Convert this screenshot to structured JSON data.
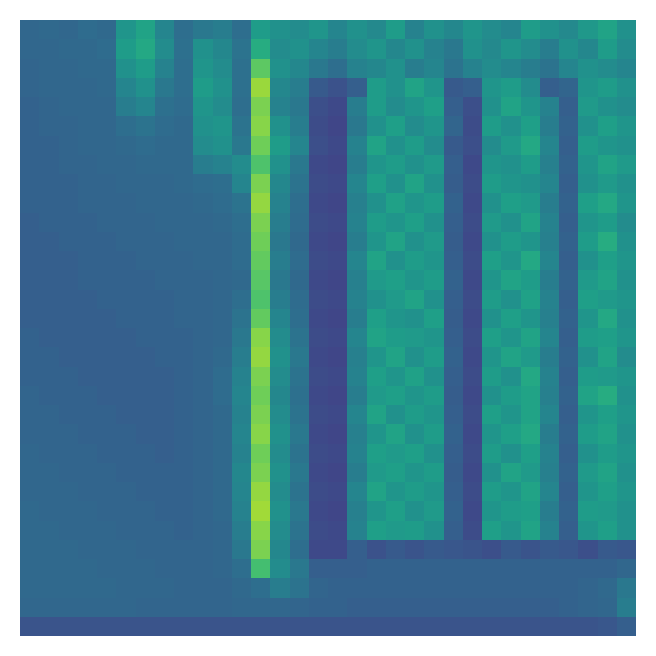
{
  "chart_data": {
    "type": "heatmap",
    "color": "Viridis",
    "tick_labels": false,
    "grid": false,
    "xlim": [
      -0.5,
      31.5
    ],
    "ylim": [
      31.5,
      -0.5
    ],
    "zlim": [
      0,
      1
    ],
    "cells": [
      [
        0.33,
        0.34,
        0.33,
        0.35,
        0.34,
        0.52,
        0.58,
        0.45,
        0.36,
        0.4,
        0.42,
        0.36,
        0.55,
        0.5,
        0.48,
        0.52,
        0.45,
        0.5,
        0.47,
        0.55,
        0.44,
        0.5,
        0.46,
        0.52,
        0.48,
        0.45,
        0.55,
        0.5,
        0.47,
        0.53,
        0.58,
        0.5
      ],
      [
        0.33,
        0.33,
        0.34,
        0.34,
        0.35,
        0.55,
        0.6,
        0.48,
        0.37,
        0.5,
        0.46,
        0.38,
        0.62,
        0.48,
        0.5,
        0.45,
        0.42,
        0.48,
        0.52,
        0.46,
        0.5,
        0.44,
        0.4,
        0.5,
        0.47,
        0.52,
        0.48,
        0.42,
        0.5,
        0.46,
        0.55,
        0.48
      ],
      [
        0.32,
        0.33,
        0.33,
        0.34,
        0.34,
        0.5,
        0.55,
        0.44,
        0.36,
        0.52,
        0.48,
        0.37,
        0.75,
        0.5,
        0.46,
        0.4,
        0.36,
        0.44,
        0.46,
        0.5,
        0.42,
        0.45,
        0.38,
        0.44,
        0.48,
        0.45,
        0.42,
        0.38,
        0.45,
        0.5,
        0.48,
        0.45
      ],
      [
        0.32,
        0.33,
        0.33,
        0.33,
        0.34,
        0.45,
        0.5,
        0.4,
        0.36,
        0.55,
        0.5,
        0.37,
        0.85,
        0.46,
        0.42,
        0.28,
        0.25,
        0.3,
        0.55,
        0.5,
        0.58,
        0.52,
        0.28,
        0.3,
        0.52,
        0.55,
        0.48,
        0.3,
        0.32,
        0.52,
        0.55,
        0.5
      ],
      [
        0.31,
        0.32,
        0.33,
        0.33,
        0.33,
        0.42,
        0.45,
        0.37,
        0.35,
        0.52,
        0.48,
        0.36,
        0.8,
        0.44,
        0.4,
        0.24,
        0.22,
        0.42,
        0.55,
        0.48,
        0.52,
        0.56,
        0.3,
        0.24,
        0.5,
        0.58,
        0.52,
        0.44,
        0.3,
        0.54,
        0.5,
        0.48
      ],
      [
        0.31,
        0.32,
        0.32,
        0.33,
        0.33,
        0.36,
        0.38,
        0.35,
        0.34,
        0.5,
        0.52,
        0.38,
        0.82,
        0.5,
        0.42,
        0.23,
        0.21,
        0.4,
        0.5,
        0.56,
        0.48,
        0.52,
        0.32,
        0.23,
        0.55,
        0.5,
        0.56,
        0.42,
        0.31,
        0.5,
        0.56,
        0.52
      ],
      [
        0.31,
        0.31,
        0.32,
        0.33,
        0.33,
        0.34,
        0.35,
        0.34,
        0.34,
        0.48,
        0.5,
        0.4,
        0.78,
        0.55,
        0.45,
        0.24,
        0.22,
        0.44,
        0.58,
        0.5,
        0.55,
        0.48,
        0.28,
        0.24,
        0.48,
        0.54,
        0.6,
        0.45,
        0.3,
        0.55,
        0.52,
        0.5
      ],
      [
        0.31,
        0.31,
        0.32,
        0.32,
        0.33,
        0.33,
        0.34,
        0.34,
        0.34,
        0.42,
        0.44,
        0.48,
        0.72,
        0.5,
        0.4,
        0.22,
        0.21,
        0.42,
        0.52,
        0.55,
        0.5,
        0.54,
        0.3,
        0.22,
        0.52,
        0.5,
        0.55,
        0.43,
        0.31,
        0.52,
        0.58,
        0.54
      ],
      [
        0.31,
        0.31,
        0.31,
        0.32,
        0.32,
        0.33,
        0.33,
        0.33,
        0.34,
        0.35,
        0.36,
        0.45,
        0.8,
        0.46,
        0.38,
        0.23,
        0.22,
        0.45,
        0.56,
        0.5,
        0.58,
        0.5,
        0.29,
        0.23,
        0.55,
        0.52,
        0.5,
        0.45,
        0.3,
        0.5,
        0.54,
        0.5
      ],
      [
        0.31,
        0.31,
        0.31,
        0.32,
        0.32,
        0.32,
        0.33,
        0.33,
        0.33,
        0.34,
        0.35,
        0.38,
        0.84,
        0.44,
        0.36,
        0.22,
        0.21,
        0.43,
        0.5,
        0.57,
        0.52,
        0.55,
        0.31,
        0.22,
        0.5,
        0.56,
        0.54,
        0.42,
        0.31,
        0.56,
        0.6,
        0.52
      ],
      [
        0.3,
        0.31,
        0.31,
        0.31,
        0.32,
        0.32,
        0.32,
        0.33,
        0.33,
        0.33,
        0.34,
        0.36,
        0.8,
        0.42,
        0.35,
        0.23,
        0.22,
        0.44,
        0.55,
        0.52,
        0.56,
        0.5,
        0.3,
        0.23,
        0.54,
        0.5,
        0.58,
        0.44,
        0.3,
        0.52,
        0.55,
        0.48
      ],
      [
        0.3,
        0.3,
        0.31,
        0.31,
        0.31,
        0.32,
        0.32,
        0.32,
        0.33,
        0.33,
        0.33,
        0.35,
        0.78,
        0.4,
        0.34,
        0.22,
        0.21,
        0.42,
        0.52,
        0.58,
        0.5,
        0.54,
        0.29,
        0.22,
        0.5,
        0.55,
        0.52,
        0.43,
        0.31,
        0.55,
        0.62,
        0.5
      ],
      [
        0.3,
        0.3,
        0.3,
        0.31,
        0.31,
        0.31,
        0.32,
        0.32,
        0.32,
        0.33,
        0.33,
        0.35,
        0.76,
        0.42,
        0.35,
        0.23,
        0.22,
        0.45,
        0.58,
        0.5,
        0.55,
        0.52,
        0.3,
        0.23,
        0.56,
        0.52,
        0.6,
        0.45,
        0.3,
        0.5,
        0.56,
        0.52
      ],
      [
        0.3,
        0.3,
        0.3,
        0.31,
        0.31,
        0.31,
        0.31,
        0.32,
        0.32,
        0.32,
        0.33,
        0.34,
        0.74,
        0.4,
        0.34,
        0.22,
        0.21,
        0.43,
        0.54,
        0.56,
        0.52,
        0.55,
        0.31,
        0.22,
        0.52,
        0.58,
        0.55,
        0.42,
        0.31,
        0.54,
        0.58,
        0.5
      ],
      [
        0.3,
        0.3,
        0.3,
        0.3,
        0.31,
        0.31,
        0.31,
        0.31,
        0.32,
        0.32,
        0.33,
        0.36,
        0.72,
        0.42,
        0.35,
        0.23,
        0.22,
        0.44,
        0.5,
        0.54,
        0.58,
        0.5,
        0.3,
        0.23,
        0.55,
        0.5,
        0.57,
        0.44,
        0.3,
        0.56,
        0.54,
        0.52
      ],
      [
        0.3,
        0.3,
        0.3,
        0.3,
        0.3,
        0.31,
        0.31,
        0.31,
        0.32,
        0.32,
        0.33,
        0.38,
        0.76,
        0.45,
        0.36,
        0.22,
        0.21,
        0.42,
        0.56,
        0.52,
        0.5,
        0.56,
        0.29,
        0.22,
        0.5,
        0.56,
        0.52,
        0.43,
        0.31,
        0.52,
        0.6,
        0.5
      ],
      [
        0.31,
        0.3,
        0.3,
        0.3,
        0.3,
        0.3,
        0.31,
        0.31,
        0.31,
        0.32,
        0.33,
        0.4,
        0.82,
        0.48,
        0.38,
        0.23,
        0.22,
        0.45,
        0.58,
        0.55,
        0.54,
        0.52,
        0.3,
        0.23,
        0.56,
        0.52,
        0.58,
        0.45,
        0.3,
        0.55,
        0.56,
        0.52
      ],
      [
        0.31,
        0.31,
        0.3,
        0.3,
        0.3,
        0.3,
        0.3,
        0.31,
        0.31,
        0.32,
        0.34,
        0.42,
        0.84,
        0.5,
        0.4,
        0.22,
        0.21,
        0.43,
        0.52,
        0.58,
        0.5,
        0.55,
        0.31,
        0.22,
        0.52,
        0.58,
        0.54,
        0.42,
        0.31,
        0.5,
        0.58,
        0.48
      ],
      [
        0.31,
        0.31,
        0.31,
        0.3,
        0.3,
        0.3,
        0.3,
        0.3,
        0.31,
        0.32,
        0.35,
        0.44,
        0.8,
        0.48,
        0.38,
        0.23,
        0.22,
        0.44,
        0.56,
        0.52,
        0.57,
        0.5,
        0.3,
        0.23,
        0.55,
        0.5,
        0.6,
        0.44,
        0.3,
        0.55,
        0.54,
        0.52
      ],
      [
        0.32,
        0.31,
        0.31,
        0.31,
        0.3,
        0.3,
        0.3,
        0.3,
        0.31,
        0.32,
        0.35,
        0.45,
        0.78,
        0.46,
        0.37,
        0.22,
        0.21,
        0.42,
        0.54,
        0.56,
        0.52,
        0.55,
        0.29,
        0.22,
        0.5,
        0.55,
        0.58,
        0.43,
        0.31,
        0.58,
        0.62,
        0.5
      ],
      [
        0.32,
        0.32,
        0.31,
        0.31,
        0.31,
        0.3,
        0.3,
        0.3,
        0.31,
        0.32,
        0.34,
        0.44,
        0.8,
        0.48,
        0.38,
        0.23,
        0.22,
        0.45,
        0.58,
        0.5,
        0.55,
        0.52,
        0.3,
        0.23,
        0.56,
        0.52,
        0.58,
        0.45,
        0.3,
        0.52,
        0.56,
        0.52
      ],
      [
        0.32,
        0.32,
        0.32,
        0.31,
        0.31,
        0.31,
        0.3,
        0.3,
        0.31,
        0.32,
        0.34,
        0.45,
        0.82,
        0.5,
        0.4,
        0.22,
        0.21,
        0.43,
        0.52,
        0.58,
        0.5,
        0.55,
        0.31,
        0.22,
        0.52,
        0.56,
        0.6,
        0.42,
        0.31,
        0.55,
        0.58,
        0.5
      ],
      [
        0.33,
        0.32,
        0.32,
        0.32,
        0.31,
        0.31,
        0.31,
        0.3,
        0.31,
        0.32,
        0.34,
        0.44,
        0.78,
        0.48,
        0.38,
        0.23,
        0.22,
        0.44,
        0.56,
        0.54,
        0.56,
        0.5,
        0.3,
        0.23,
        0.55,
        0.5,
        0.56,
        0.44,
        0.3,
        0.5,
        0.55,
        0.52
      ],
      [
        0.33,
        0.33,
        0.32,
        0.32,
        0.32,
        0.31,
        0.31,
        0.31,
        0.31,
        0.32,
        0.34,
        0.46,
        0.8,
        0.5,
        0.4,
        0.22,
        0.21,
        0.42,
        0.54,
        0.56,
        0.52,
        0.55,
        0.29,
        0.22,
        0.5,
        0.58,
        0.54,
        0.43,
        0.31,
        0.54,
        0.58,
        0.5
      ],
      [
        0.33,
        0.33,
        0.33,
        0.32,
        0.32,
        0.32,
        0.31,
        0.31,
        0.31,
        0.32,
        0.34,
        0.45,
        0.84,
        0.48,
        0.38,
        0.23,
        0.22,
        0.45,
        0.58,
        0.52,
        0.55,
        0.52,
        0.3,
        0.23,
        0.55,
        0.52,
        0.58,
        0.45,
        0.3,
        0.52,
        0.56,
        0.52
      ],
      [
        0.34,
        0.33,
        0.33,
        0.33,
        0.32,
        0.32,
        0.32,
        0.31,
        0.31,
        0.32,
        0.34,
        0.44,
        0.86,
        0.5,
        0.4,
        0.22,
        0.21,
        0.43,
        0.52,
        0.56,
        0.5,
        0.54,
        0.31,
        0.22,
        0.52,
        0.55,
        0.56,
        0.42,
        0.31,
        0.55,
        0.54,
        0.5
      ],
      [
        0.34,
        0.34,
        0.33,
        0.33,
        0.33,
        0.32,
        0.32,
        0.32,
        0.31,
        0.32,
        0.33,
        0.42,
        0.82,
        0.48,
        0.38,
        0.23,
        0.22,
        0.44,
        0.56,
        0.54,
        0.55,
        0.5,
        0.3,
        0.23,
        0.56,
        0.52,
        0.58,
        0.44,
        0.3,
        0.52,
        0.56,
        0.5
      ],
      [
        0.34,
        0.34,
        0.34,
        0.33,
        0.33,
        0.33,
        0.32,
        0.32,
        0.32,
        0.32,
        0.33,
        0.4,
        0.8,
        0.46,
        0.36,
        0.22,
        0.22,
        0.3,
        0.25,
        0.28,
        0.26,
        0.28,
        0.27,
        0.26,
        0.24,
        0.28,
        0.26,
        0.28,
        0.27,
        0.24,
        0.28,
        0.27
      ],
      [
        0.34,
        0.34,
        0.34,
        0.34,
        0.33,
        0.33,
        0.33,
        0.32,
        0.32,
        0.32,
        0.33,
        0.36,
        0.7,
        0.48,
        0.4,
        0.3,
        0.3,
        0.3,
        0.31,
        0.31,
        0.31,
        0.31,
        0.31,
        0.31,
        0.31,
        0.31,
        0.31,
        0.31,
        0.31,
        0.31,
        0.31,
        0.33
      ],
      [
        0.34,
        0.34,
        0.34,
        0.34,
        0.34,
        0.33,
        0.33,
        0.33,
        0.32,
        0.32,
        0.32,
        0.34,
        0.36,
        0.42,
        0.38,
        0.32,
        0.31,
        0.31,
        0.31,
        0.31,
        0.31,
        0.31,
        0.31,
        0.31,
        0.31,
        0.31,
        0.31,
        0.31,
        0.31,
        0.32,
        0.34,
        0.4
      ],
      [
        0.33,
        0.33,
        0.33,
        0.33,
        0.33,
        0.33,
        0.32,
        0.32,
        0.32,
        0.32,
        0.32,
        0.33,
        0.33,
        0.33,
        0.32,
        0.31,
        0.31,
        0.3,
        0.3,
        0.3,
        0.3,
        0.3,
        0.3,
        0.3,
        0.3,
        0.3,
        0.3,
        0.3,
        0.31,
        0.32,
        0.33,
        0.42
      ],
      [
        0.26,
        0.26,
        0.26,
        0.26,
        0.26,
        0.26,
        0.26,
        0.26,
        0.26,
        0.26,
        0.26,
        0.26,
        0.26,
        0.26,
        0.26,
        0.26,
        0.26,
        0.26,
        0.26,
        0.26,
        0.26,
        0.26,
        0.26,
        0.26,
        0.26,
        0.26,
        0.26,
        0.26,
        0.26,
        0.26,
        0.27,
        0.3
      ]
    ]
  }
}
